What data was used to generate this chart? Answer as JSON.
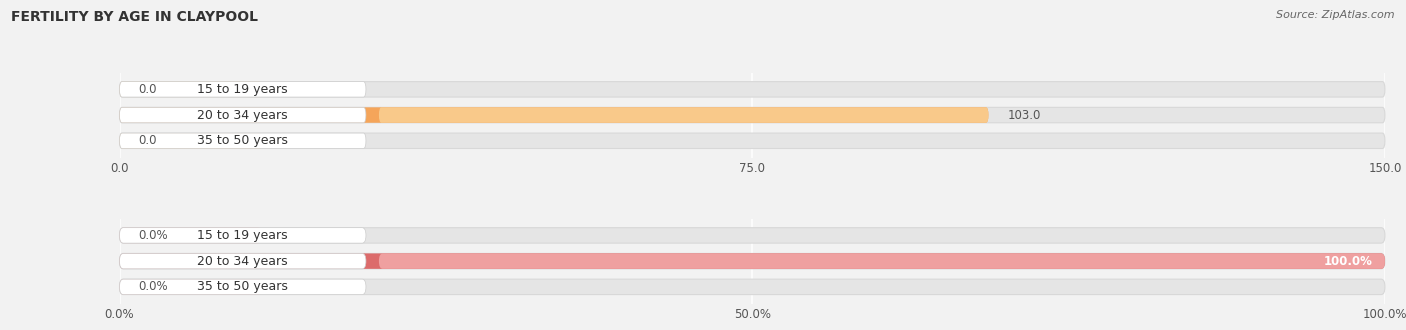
{
  "title": "FERTILITY BY AGE IN CLAYPOOL",
  "source": "Source: ZipAtlas.com",
  "top_chart": {
    "categories": [
      "15 to 19 years",
      "20 to 34 years",
      "35 to 50 years"
    ],
    "values": [
      0.0,
      103.0,
      0.0
    ],
    "bar_color": "#F5A55A",
    "bar_color_light": "#F9C98A",
    "xlim": [
      0,
      150
    ],
    "xticks": [
      0.0,
      75.0,
      150.0
    ],
    "is_percent": false
  },
  "bottom_chart": {
    "categories": [
      "15 to 19 years",
      "20 to 34 years",
      "35 to 50 years"
    ],
    "values": [
      0.0,
      100.0,
      0.0
    ],
    "bar_color": "#DC6B6B",
    "bar_color_light": "#EFA0A0",
    "xlim": [
      0,
      100
    ],
    "xticks": [
      0.0,
      50.0,
      100.0
    ],
    "is_percent": true
  },
  "bg_color": "#f2f2f2",
  "bar_bg_color": "#e5e5e5",
  "bar_bg_edge": "#d8d8d8",
  "label_bg_color": "#ffffff",
  "title_fontsize": 10,
  "source_fontsize": 8,
  "label_fontsize": 9,
  "tick_fontsize": 8.5,
  "value_fontsize": 8.5
}
